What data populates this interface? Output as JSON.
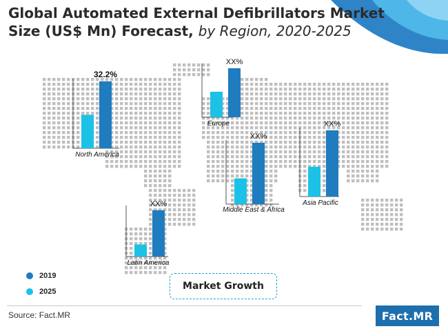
{
  "title": {
    "main": "Global Automated External Defibrillators Market",
    "line2_bold": "Size (US$ Mn) Forecast,",
    "line2_italic": "by Region, 2020-2025"
  },
  "colors": {
    "series_2019": "#1f7cbf",
    "series_2025": "#1cc2e6",
    "map_dots": "#bfbfbf",
    "header_blue": "#2f84c7",
    "header_light": "#4fb6e8"
  },
  "chart_data": {
    "type": "bar",
    "title": "Global Automated External Defibrillators Market Size (US$ Mn) Forecast, by Region, 2020-2025",
    "series": [
      {
        "name": "2019",
        "color": "#1f7cbf"
      },
      {
        "name": "2025",
        "color": "#1cc2e6"
      }
    ],
    "categories": [
      "North America",
      "Europe",
      "Middle East & Africa",
      "Asia Pacific",
      "Latin America"
    ],
    "data_labels": [
      "32.2%",
      "XX%",
      "XX%",
      "XX%",
      "XX%"
    ],
    "relative_heights": {
      "North America": {
        "2025": 0.5,
        "2019": 1.0
      },
      "Europe": {
        "2025": 0.5,
        "2019": 0.96
      },
      "Middle East & Africa": {
        "2025": 0.42,
        "2019": 1.0
      },
      "Asia Pacific": {
        "2025": 0.45,
        "2019": 1.0
      },
      "Latin America": {
        "2025": 0.25,
        "2019": 0.96
      }
    },
    "legend_position": "bottom-left"
  },
  "legend": [
    {
      "label": "2019",
      "color": "#1f7cbf"
    },
    {
      "label": "2025",
      "color": "#1cc2e6"
    }
  ],
  "market_growth_label": "Market Growth",
  "source": "Source: Fact.MR",
  "logo": "Fact.MR"
}
